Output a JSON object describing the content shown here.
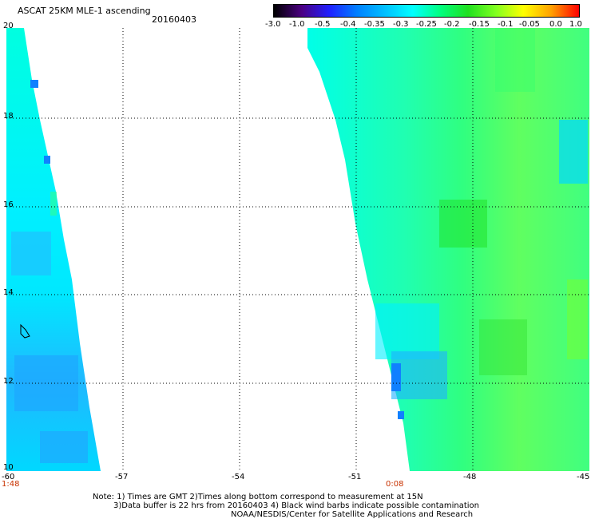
{
  "header": {
    "title": "ASCAT 25KM MLE-1 ascending",
    "date": "20160403"
  },
  "colorbar": {
    "labels": [
      "-3.0",
      "-1.0",
      "-0.5",
      "-0.4",
      "-0.35",
      "-0.3",
      "-0.25",
      "-0.2",
      "-0.15",
      "-0.1",
      "-0.05",
      "0.0",
      "1.0"
    ],
    "colors": [
      "#000000",
      "#4b0082",
      "#2020ff",
      "#0080ff",
      "#00c0ff",
      "#00ffff",
      "#00ff80",
      "#20e020",
      "#80ff20",
      "#ffff00",
      "#ffa000",
      "#ff0000"
    ]
  },
  "axes": {
    "lat_ticks": [
      "20",
      "18",
      "16",
      "14",
      "12",
      "10"
    ],
    "lon_ticks": [
      "-60",
      "-57",
      "-54",
      "-51",
      "-48",
      "-45"
    ],
    "lat_range": [
      10,
      20
    ],
    "lon_range": [
      -60,
      -45
    ]
  },
  "pass_times": [
    {
      "label": "1:48",
      "color": "#c83200"
    },
    {
      "label": "0:08",
      "color": "#c83200"
    }
  ],
  "notes": {
    "line1": "Note: 1) Times are GMT 2)Times along bottom correspond to measurement at 15N",
    "line2": "3)Data buffer is 22 hrs from 20160403 4) Black wind barbs indicate possible contamination",
    "line3": "NOAA/NESDIS/Center for Satellite Applications and Research"
  }
}
